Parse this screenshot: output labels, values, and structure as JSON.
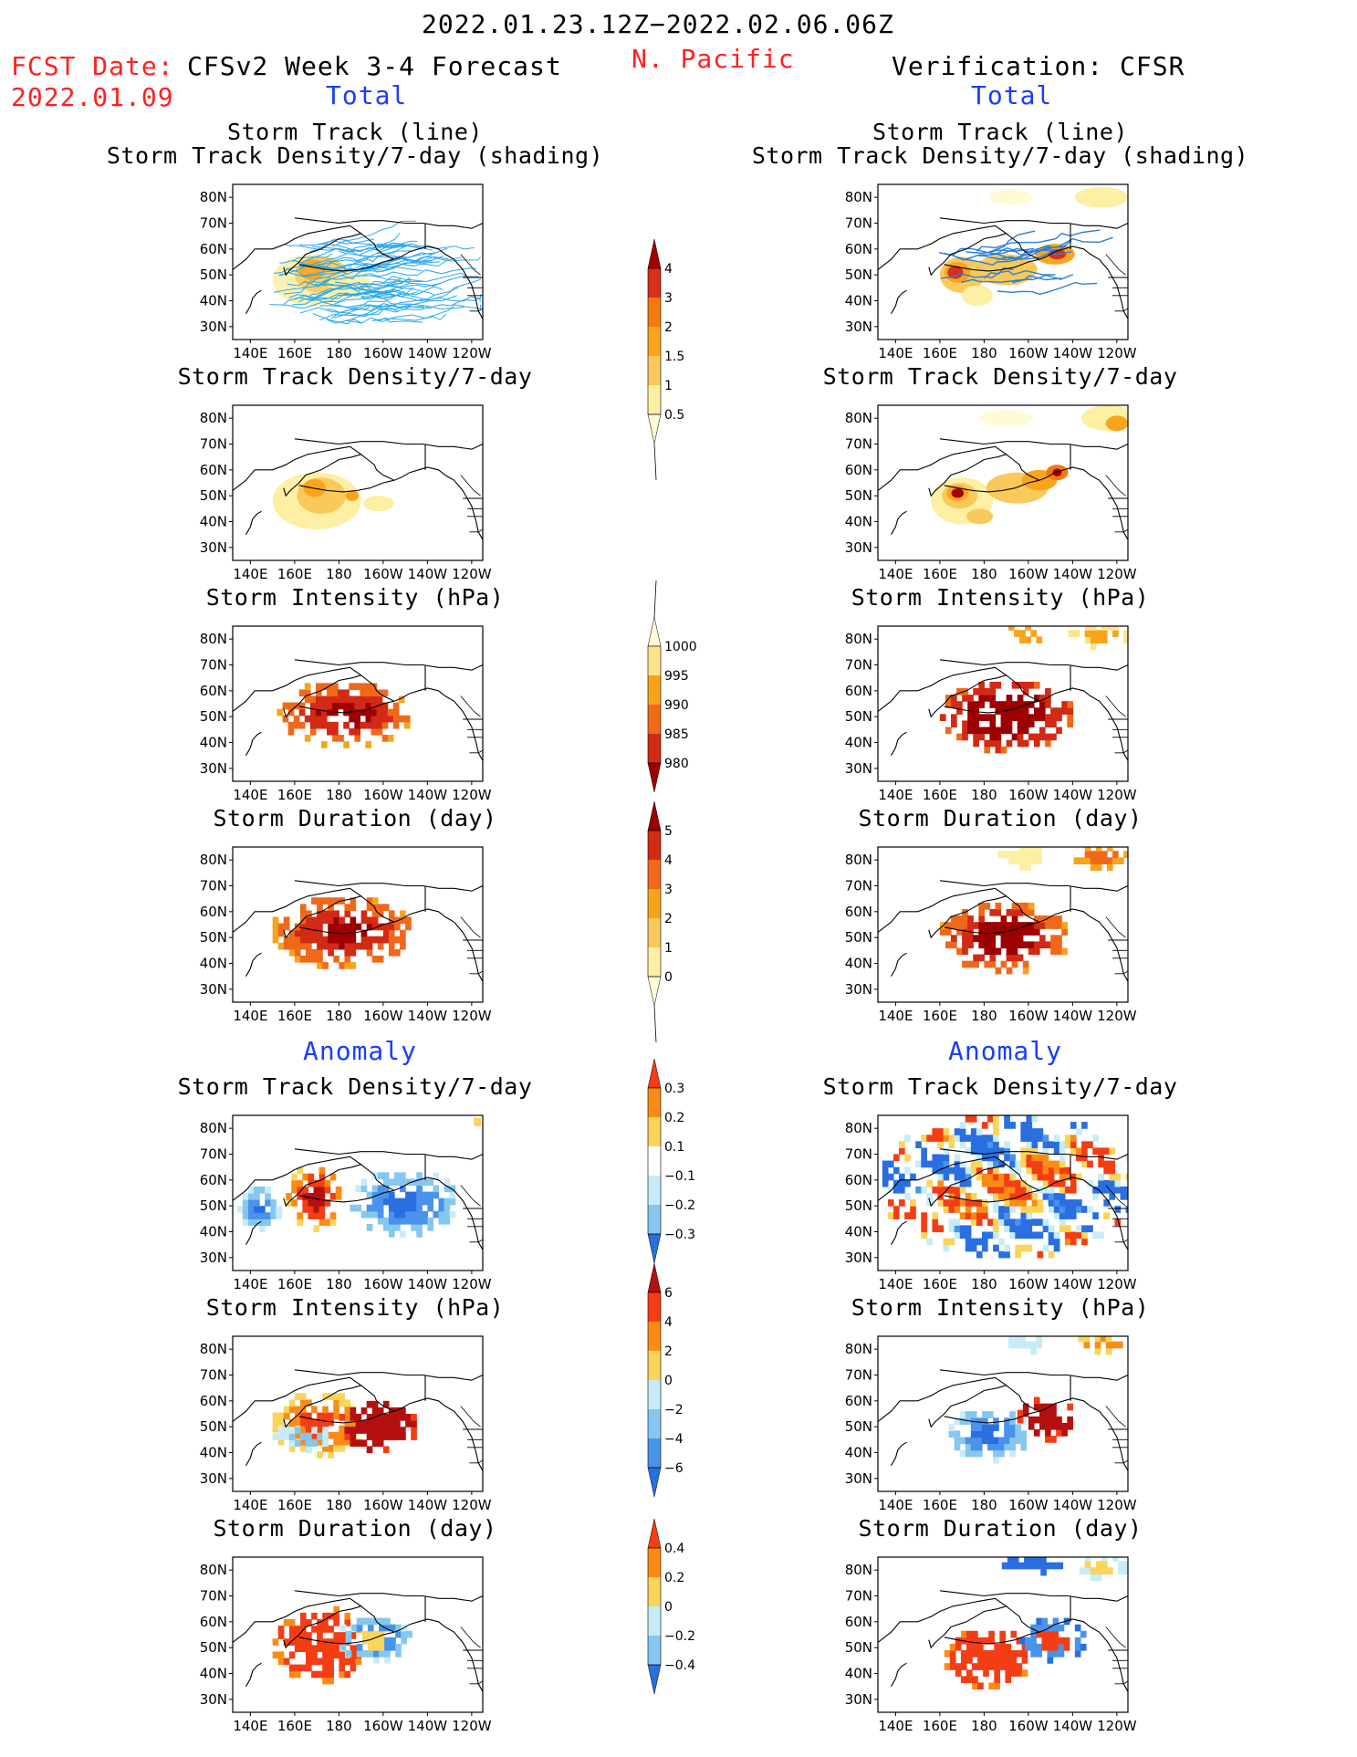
{
  "header": {
    "period": "2022.01.23.12Z−2022.02.06.06Z",
    "fcst_label": "FCST Date:",
    "fcst_date": "2022.01.09",
    "model": "CFSv2 Week 3-4 Forecast",
    "region": "N. Pacific",
    "verification": "Verification: CFSR",
    "total_left": "Total",
    "total_right": "Total",
    "anomaly_left": "Anomaly",
    "anomaly_right": "Anomaly"
  },
  "axes": {
    "lat_labels": [
      "80N",
      "70N",
      "60N",
      "50N",
      "40N",
      "30N"
    ],
    "lon_labels": [
      "140E",
      "160E",
      "180",
      "160W",
      "140W",
      "120W"
    ]
  },
  "panels": [
    {
      "id": "fc-track",
      "title1": "Storm Track (line)",
      "title2": "Storm Track Density/7-day (shading)",
      "field": "track_density",
      "tracks": "dense",
      "palette": "dens"
    },
    {
      "id": "vf-track",
      "title1": "Storm Track (line)",
      "title2": "Storm Track Density/7-day (shading)",
      "field": "track_density",
      "tracks": "sparse",
      "palette": "dens"
    },
    {
      "id": "fc-dens",
      "title1": "Storm Track Density/7-day",
      "palette": "dens"
    },
    {
      "id": "vf-dens",
      "title1": "Storm Track Density/7-day",
      "palette": "dens"
    },
    {
      "id": "fc-int",
      "title1": "Storm Intensity (hPa)",
      "palette": "int"
    },
    {
      "id": "vf-int",
      "title1": "Storm Intensity (hPa)",
      "palette": "int"
    },
    {
      "id": "fc-dur",
      "title1": "Storm Duration (day)",
      "palette": "dur"
    },
    {
      "id": "vf-dur",
      "title1": "Storm Duration (day)",
      "palette": "dur"
    },
    {
      "id": "fc-adens",
      "title1": "Storm Track Density/7-day",
      "palette": "anom"
    },
    {
      "id": "vf-adens",
      "title1": "Storm Track Density/7-day",
      "palette": "anom"
    },
    {
      "id": "fc-aint",
      "title1": "Storm Intensity (hPa)",
      "palette": "anom"
    },
    {
      "id": "vf-aint",
      "title1": "Storm Intensity (hPa)",
      "palette": "anom"
    },
    {
      "id": "fc-adur",
      "title1": "Storm Duration (day)",
      "palette": "anom"
    },
    {
      "id": "vf-adur",
      "title1": "Storm Duration (day)",
      "palette": "anom"
    }
  ],
  "colorbars": [
    {
      "id": "cb-density",
      "labels": [
        "4",
        "3",
        "2",
        "1.5",
        "1",
        "0.5"
      ],
      "colors": [
        "#a50000",
        "#d82f1b",
        "#f47a10",
        "#faa41e",
        "#f9c95b",
        "#fdefa3",
        "#fefbd6"
      ],
      "tail": "bottom"
    },
    {
      "id": "cb-intensity",
      "labels": [
        "1000",
        "995",
        "990",
        "985",
        "980"
      ],
      "colors": [
        "#fefbd6",
        "#fde38a",
        "#f7a41c",
        "#f0691a",
        "#d22a15",
        "#9c0000"
      ],
      "tail": "top"
    },
    {
      "id": "cb-duration",
      "labels": [
        "5",
        "4",
        "3",
        "2",
        "1",
        "0"
      ],
      "colors": [
        "#9c0000",
        "#d22a15",
        "#f0691a",
        "#f7a41c",
        "#f9c95b",
        "#fdefa3",
        "#fefbd6"
      ],
      "tail": "bottom"
    },
    {
      "id": "cb-anom-density",
      "labels": [
        "0.3",
        "0.2",
        "0.1",
        "−0.1",
        "−0.2",
        "−0.3"
      ],
      "colors": [
        "#f53d14",
        "#fa8c16",
        "#fbd45a",
        "#ffffff",
        "#c7ecf7",
        "#86c7f0",
        "#2a6fe0"
      ],
      "tail": "none"
    },
    {
      "id": "cb-anom-intensity",
      "labels": [
        "6",
        "4",
        "2",
        "0",
        "−2",
        "−4",
        "−6"
      ],
      "colors": [
        "#b51010",
        "#f53d14",
        "#fa8c16",
        "#fbd45a",
        "#c7ecf7",
        "#86c7f0",
        "#4a93ea",
        "#2a6fe0"
      ],
      "tail": "none"
    },
    {
      "id": "cb-anom-duration",
      "labels": [
        "0.4",
        "0.2",
        "0",
        "−0.2",
        "−0.4"
      ],
      "colors": [
        "#f53d14",
        "#fa8c16",
        "#fbd45a",
        "#c7ecf7",
        "#86c7f0",
        "#2a6fe0"
      ],
      "tail": "none"
    }
  ],
  "colors": {
    "title_red": "#ff2020",
    "title_blue": "#1a3dff",
    "track_line": "#2aa7ee",
    "track_line_obs": "#2b7fd8"
  }
}
